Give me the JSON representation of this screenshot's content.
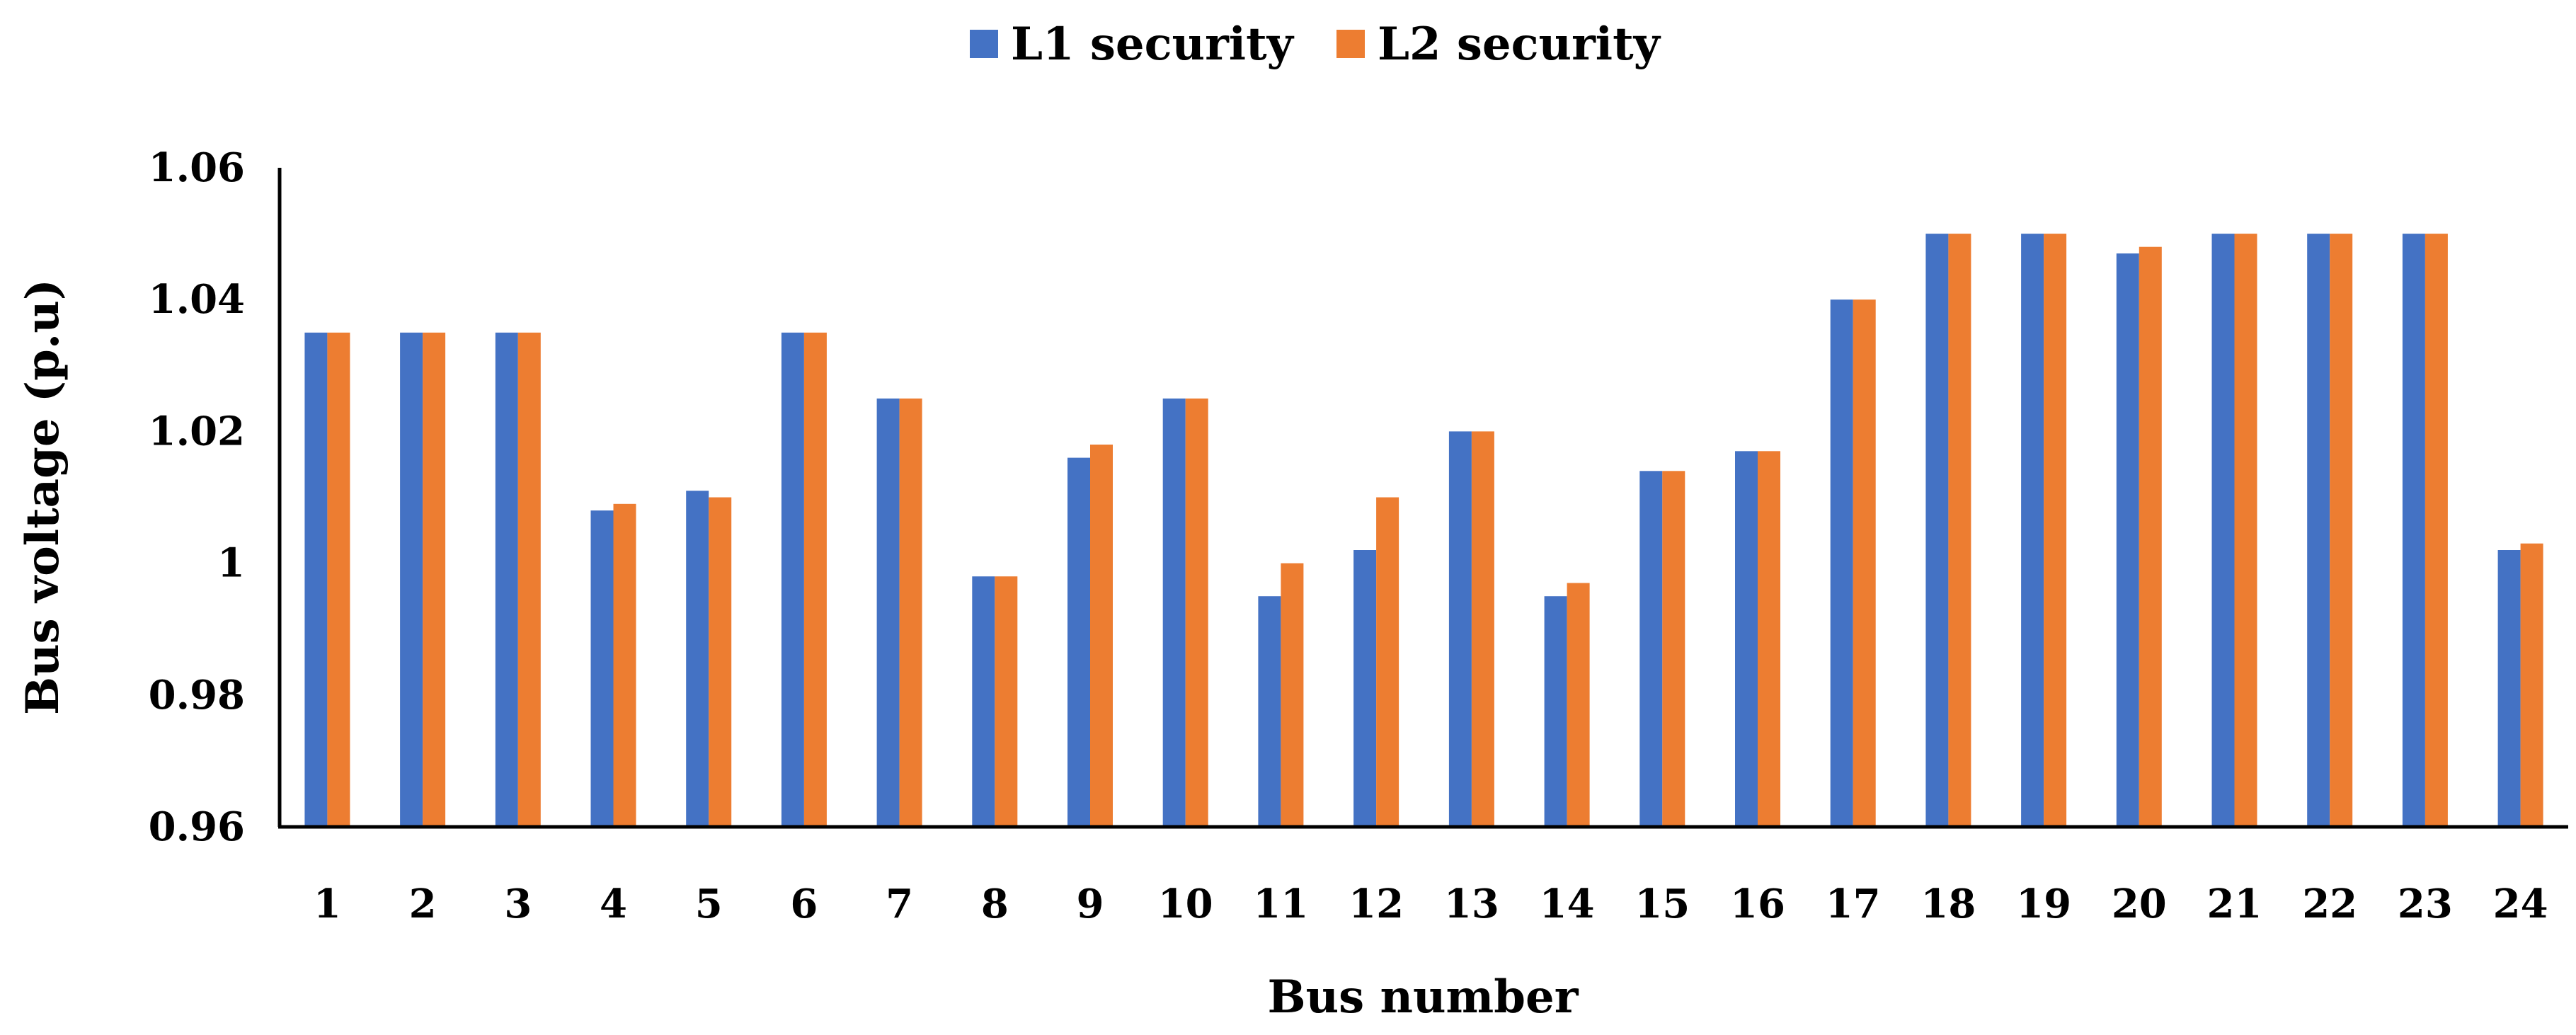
{
  "chart_data": {
    "type": "bar",
    "categories": [
      "1",
      "2",
      "3",
      "4",
      "5",
      "6",
      "7",
      "8",
      "9",
      "10",
      "11",
      "12",
      "13",
      "14",
      "15",
      "16",
      "17",
      "18",
      "19",
      "20",
      "21",
      "22",
      "23",
      "24"
    ],
    "series": [
      {
        "name": "L1 security",
        "color": "#4472C4",
        "values": [
          1.035,
          1.035,
          1.035,
          1.008,
          1.011,
          1.035,
          1.025,
          0.998,
          1.016,
          1.025,
          0.995,
          1.002,
          1.02,
          0.995,
          1.014,
          1.017,
          1.04,
          1.05,
          1.05,
          1.047,
          1.05,
          1.05,
          1.05,
          1.002
        ]
      },
      {
        "name": "L2 security",
        "color": "#ED7D31",
        "values": [
          1.035,
          1.035,
          1.035,
          1.009,
          1.01,
          1.035,
          1.025,
          0.998,
          1.018,
          1.025,
          1.0,
          1.01,
          1.02,
          0.997,
          1.014,
          1.017,
          1.04,
          1.05,
          1.05,
          1.048,
          1.05,
          1.05,
          1.05,
          1.003
        ]
      }
    ],
    "xlabel": "Bus number",
    "ylabel": "Bus voltage (p.u)",
    "ylim": [
      0.96,
      1.06
    ],
    "yticks": [
      "0.96",
      "0.98",
      "1",
      "1.02",
      "1.04",
      "1.06"
    ],
    "grid": false,
    "legend_position": "top"
  }
}
